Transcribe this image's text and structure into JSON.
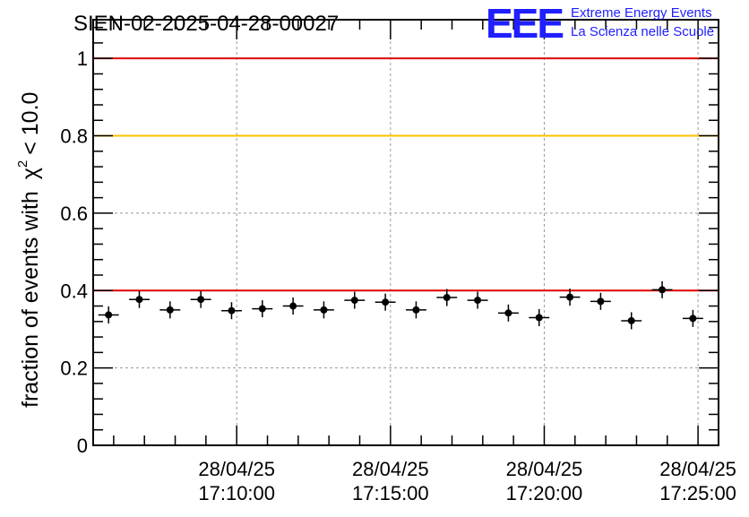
{
  "chart_data": {
    "type": "scatter",
    "title": "SIEN-02-2025-04-28-00027",
    "ylabel": "fraction of events with",
    "ylabel_symbol": "χ",
    "ylabel_superscript": "2",
    "ylabel_suffix": "< 10.0",
    "xlabel": "",
    "ylim": [
      0,
      1.1
    ],
    "yticks": [
      {
        "value": 0,
        "label": "0"
      },
      {
        "value": 0.2,
        "label": "0.2"
      },
      {
        "value": 0.4,
        "label": "0.4"
      },
      {
        "value": 0.6,
        "label": "0.6"
      },
      {
        "value": 0.8,
        "label": "0.8"
      },
      {
        "value": 1.0,
        "label": "1"
      }
    ],
    "xlim": [
      "17:05:20",
      "17:25:40"
    ],
    "xticks": [
      {
        "time": "17:10:00",
        "date_label": "28/04/25",
        "time_label": "17:10:00"
      },
      {
        "time": "17:15:00",
        "date_label": "28/04/25",
        "time_label": "17:15:00"
      },
      {
        "time": "17:20:00",
        "date_label": "28/04/25",
        "time_label": "17:20:00"
      },
      {
        "time": "17:25:00",
        "date_label": "28/04/25",
        "time_label": "17:25:00"
      }
    ],
    "grid": true,
    "reference_lines": [
      {
        "y": 1.0,
        "color": "#e00000"
      },
      {
        "y": 0.8,
        "color": "#ffc000"
      },
      {
        "y": 0.4,
        "color": "#e00000"
      }
    ],
    "bin_half_width_seconds": 20,
    "series": [
      {
        "marker_color": "#000000",
        "points": [
          {
            "x": "17:05:50",
            "y": 0.337,
            "yerr": 0.022
          },
          {
            "x": "17:06:50",
            "y": 0.377,
            "yerr": 0.022
          },
          {
            "x": "17:07:50",
            "y": 0.35,
            "yerr": 0.022
          },
          {
            "x": "17:08:50",
            "y": 0.377,
            "yerr": 0.022
          },
          {
            "x": "17:09:50",
            "y": 0.348,
            "yerr": 0.022
          },
          {
            "x": "17:10:50",
            "y": 0.353,
            "yerr": 0.022
          },
          {
            "x": "17:11:50",
            "y": 0.36,
            "yerr": 0.022
          },
          {
            "x": "17:12:50",
            "y": 0.35,
            "yerr": 0.022
          },
          {
            "x": "17:13:50",
            "y": 0.375,
            "yerr": 0.022
          },
          {
            "x": "17:14:50",
            "y": 0.37,
            "yerr": 0.022
          },
          {
            "x": "17:15:50",
            "y": 0.35,
            "yerr": 0.022
          },
          {
            "x": "17:16:50",
            "y": 0.382,
            "yerr": 0.022
          },
          {
            "x": "17:17:50",
            "y": 0.375,
            "yerr": 0.022
          },
          {
            "x": "17:18:50",
            "y": 0.342,
            "yerr": 0.022
          },
          {
            "x": "17:19:50",
            "y": 0.33,
            "yerr": 0.022
          },
          {
            "x": "17:20:50",
            "y": 0.383,
            "yerr": 0.022
          },
          {
            "x": "17:21:50",
            "y": 0.372,
            "yerr": 0.022
          },
          {
            "x": "17:22:50",
            "y": 0.322,
            "yerr": 0.022
          },
          {
            "x": "17:23:50",
            "y": 0.402,
            "yerr": 0.022
          },
          {
            "x": "17:24:50",
            "y": 0.328,
            "yerr": 0.022
          }
        ]
      }
    ]
  },
  "logo": {
    "letters": "EEE",
    "line1": "Extreme Energy Events",
    "line2": "La Scienza nelle Scuole",
    "color": "#1f1fff"
  }
}
